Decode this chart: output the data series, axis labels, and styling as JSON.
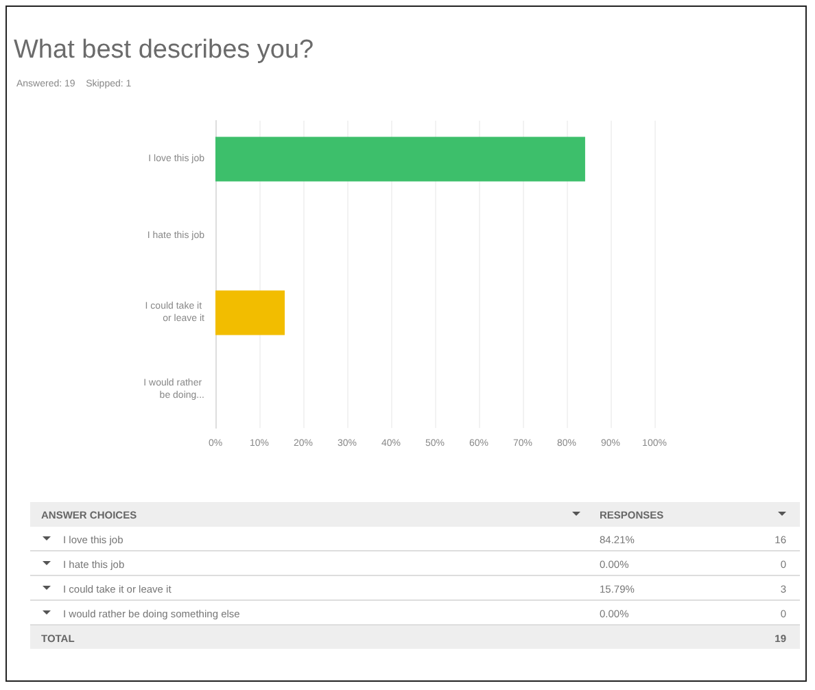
{
  "chart_data": [
    {
      "type": "bar",
      "orientation": "horizontal",
      "title": "What best describes you?",
      "subtitle": "Answered: 19    Skipped: 1",
      "categories": [
        "I love this job",
        "I hate this job",
        "I could take it or leave it",
        "I would rather be doing..."
      ],
      "values": [
        84.21,
        0,
        15.79,
        0
      ],
      "colors": [
        "#3dbf6b",
        "#2d9ad6",
        "#f2bd00",
        "#8c64b4"
      ],
      "xlim": [
        0,
        100
      ],
      "xticks": [
        {
          "value": 0,
          "label": "0%"
        },
        {
          "value": 10,
          "label": "10%"
        },
        {
          "value": 20,
          "label": "20%"
        },
        {
          "value": 30,
          "label": "30%"
        },
        {
          "value": 40,
          "label": "40%"
        },
        {
          "value": 50,
          "label": "50%"
        },
        {
          "value": 60,
          "label": "60%"
        },
        {
          "value": 70,
          "label": "70%"
        },
        {
          "value": 80,
          "label": "80%"
        },
        {
          "value": 90,
          "label": "90%"
        },
        {
          "value": 100,
          "label": "100%"
        }
      ],
      "grid": "x"
    },
    {
      "type": "other",
      "xlabel": "ANSWER CHOICES",
      "ylabel": "RESPONSES",
      "categories": [
        "I love this job",
        "I hate this job",
        "I could take it or leave it",
        "I would rather be doing something else"
      ],
      "value_labels": [
        "84.21%",
        "0.00%",
        "15.79%",
        "0.00%"
      ],
      "annotations": [
        "16",
        "0",
        "3",
        "0",
        "TOTAL",
        "19"
      ]
    }
  ]
}
